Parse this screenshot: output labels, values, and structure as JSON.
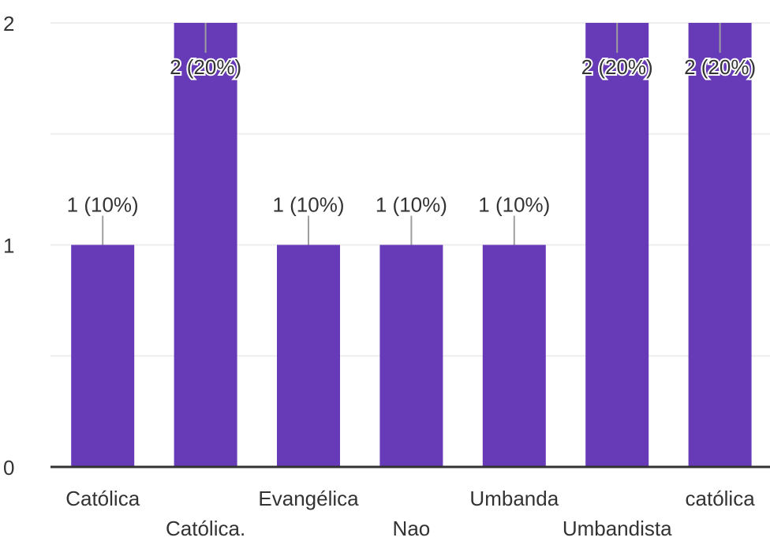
{
  "chart_data": {
    "type": "bar",
    "categories": [
      "Católica",
      "Católica.",
      "Evangélica",
      "Nao",
      "Umbanda",
      "Umbandista",
      "católica"
    ],
    "values": [
      1,
      2,
      1,
      1,
      1,
      2,
      2
    ],
    "data_labels": [
      "1 (10%)",
      "2 (20%)",
      "1 (10%)",
      "1 (10%)",
      "1 (10%)",
      "2 (20%)",
      "2 (20%)"
    ],
    "y_ticks": [
      "0",
      "1",
      "2"
    ],
    "ylim": [
      0,
      2
    ],
    "title": "",
    "xlabel": "",
    "ylabel": "",
    "grid": true,
    "colors": {
      "bar": "#673ab7",
      "grid": "#eeeeee",
      "baseline": "#333333",
      "label_text": "#333333",
      "leader_line": "#9e9e9e"
    }
  }
}
